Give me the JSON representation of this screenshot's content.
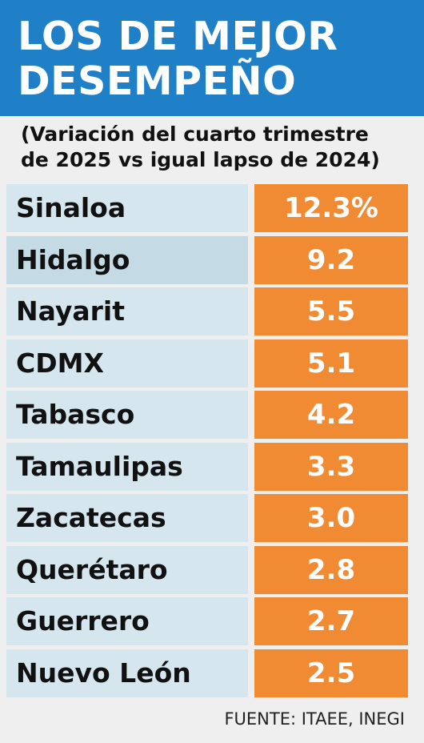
{
  "header": {
    "title_lines": [
      "LOS DE MEJOR",
      "DESEMPEÑO"
    ],
    "subtitle_lines": [
      "(Variación del cuarto trimestre",
      "de 2025 vs igual lapso de 2024)"
    ]
  },
  "table": {
    "rows": [
      [
        "Sinaloa",
        "12.3%"
      ],
      [
        "Hidalgo",
        "9.2"
      ],
      [
        "Nayarit",
        "5.5"
      ],
      [
        "CDMX",
        "5.1"
      ],
      [
        "Tabasco",
        "4.2"
      ],
      [
        "Tamaulipas",
        "3.3"
      ],
      [
        "Zacatecas",
        "3.0"
      ],
      [
        "Querétaro",
        "2.8"
      ],
      [
        "Guerrero",
        "2.7"
      ],
      [
        "Nuevo León",
        "2.5"
      ]
    ]
  },
  "source": "FUENTE: ITAEE, INEGI"
}
